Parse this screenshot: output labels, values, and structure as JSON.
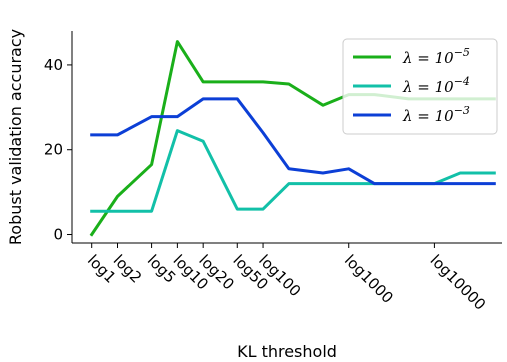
{
  "chart_data": {
    "type": "line",
    "xlabel": "KL threshold",
    "ylabel": "Robust validation accuracy",
    "x_scale": "log",
    "x_ticks": [
      1,
      2,
      5,
      10,
      20,
      50,
      100,
      1000,
      10000
    ],
    "x_tick_labels": [
      "log1",
      "log2",
      "log5",
      "log10",
      "log20",
      "log50",
      "log100",
      "log1000",
      "log10000"
    ],
    "y_ticks": [
      0,
      20,
      40
    ],
    "ylim": [
      -2,
      48
    ],
    "x": [
      1,
      2,
      5,
      10,
      20,
      50,
      100,
      200,
      500,
      1000,
      2000,
      5000,
      10000,
      20000,
      50000
    ],
    "grid": false,
    "legend_position": "top-right",
    "series": [
      {
        "name": "λ = 10⁻⁵",
        "color": "#1aaf1a",
        "values": [
          0,
          9,
          16.5,
          45.5,
          36,
          36,
          36,
          35.5,
          30.5,
          33,
          33,
          32,
          32,
          32,
          32
        ]
      },
      {
        "name": "λ = 10⁻⁴",
        "color": "#12c0a8",
        "values": [
          5.5,
          5.5,
          5.5,
          24.5,
          22,
          6,
          6,
          12,
          12,
          12,
          12,
          12,
          12,
          14.5,
          14.5
        ]
      },
      {
        "name": "λ = 10⁻³",
        "color": "#0c3fd6",
        "values": [
          23.5,
          23.5,
          27.8,
          27.8,
          32,
          32,
          24,
          15.5,
          14.5,
          15.5,
          12,
          12,
          12,
          12,
          12
        ]
      }
    ]
  }
}
